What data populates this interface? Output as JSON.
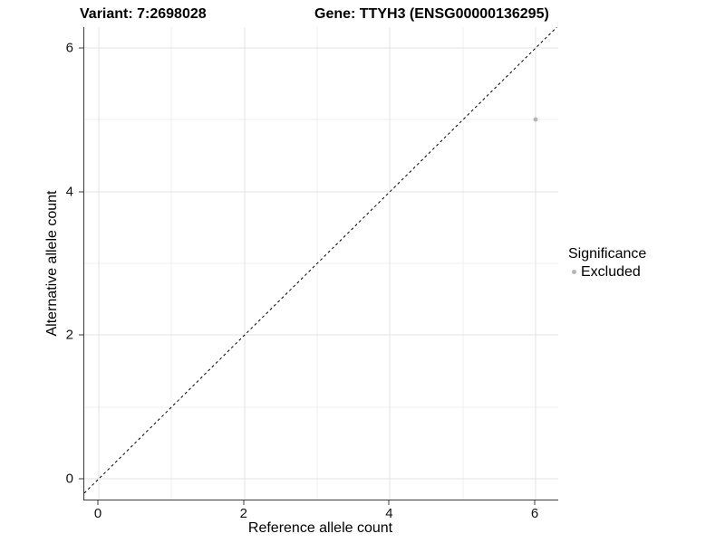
{
  "titles": {
    "variant": "Variant: 7:2698028",
    "gene": "Gene: TTYH3 (ENSG00000136295)"
  },
  "chart_data": {
    "type": "scatter",
    "xlabel": "Reference allele count",
    "ylabel": "Alternative allele count",
    "xlim": [
      -0.2,
      6.31
    ],
    "ylim": [
      -0.29,
      6.29
    ],
    "x_ticks": [
      0,
      2,
      4,
      6
    ],
    "y_ticks": [
      0,
      2,
      4,
      6
    ],
    "x_minor_breaks": [
      1,
      3,
      5
    ],
    "y_minor_breaks": [
      1,
      3,
      5
    ],
    "grid": true,
    "identity_line": {
      "slope": 1,
      "intercept": 0,
      "style": "dashed",
      "color": "#000000"
    },
    "series": [
      {
        "name": "Excluded",
        "color": "#b5b5b5",
        "points": [
          {
            "x": 6,
            "y": 5
          }
        ]
      }
    ],
    "legend": {
      "title": "Significance",
      "position": "right",
      "items": [
        {
          "label": "Excluded",
          "color": "#b5b5b5"
        }
      ]
    }
  },
  "colors": {
    "background": "#ffffff",
    "axis_line": "#3a3a3a",
    "grid_major": "#e3e3e3",
    "grid_minor": "#efefef",
    "excluded_point": "#b5b5b5"
  }
}
